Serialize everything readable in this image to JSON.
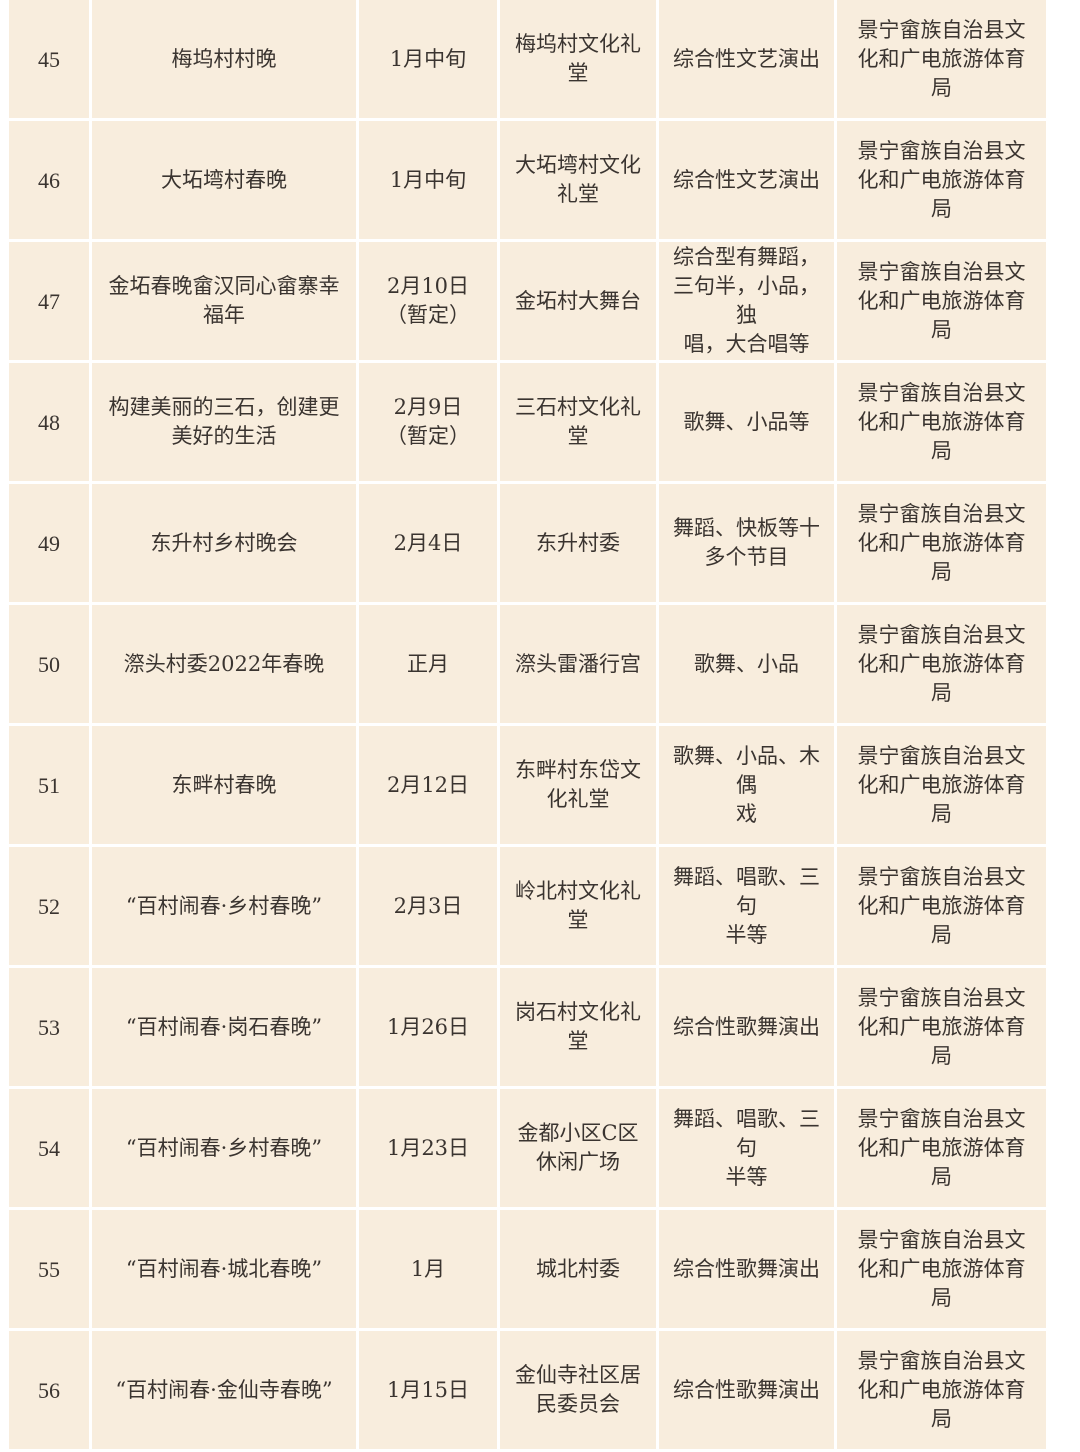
{
  "table": {
    "rows": [
      {
        "no": "45",
        "name": "梅坞村村晚",
        "date": "1月中旬",
        "venue": "梅坞村文化礼\n堂",
        "content": "综合性文艺演出",
        "org": "景宁畲族自治县文\n化和广电旅游体育\n局"
      },
      {
        "no": "46",
        "name": "大坧塆村春晚",
        "date": "1月中旬",
        "venue": "大坧塆村文化\n礼堂",
        "content": "综合性文艺演出",
        "org": "景宁畲族自治县文\n化和广电旅游体育\n局"
      },
      {
        "no": "47",
        "name": "金坧春晚畲汉同心畲寨幸\n福年",
        "date": "2月10日\n（暂定）",
        "venue": "金坧村大舞台",
        "content": "综合型有舞蹈，\n三句半，小品，独\n唱，大合唱等",
        "org": "景宁畲族自治县文\n化和广电旅游体育\n局"
      },
      {
        "no": "48",
        "name": "构建美丽的三石，创建更\n美好的生活",
        "date": "2月9日\n（暂定）",
        "venue": "三石村文化礼\n堂",
        "content": "歌舞、小品等",
        "org": "景宁畲族自治县文\n化和广电旅游体育\n局"
      },
      {
        "no": "49",
        "name": "东升村乡村晚会",
        "date": "2月4日",
        "venue": "东升村委",
        "content": "舞蹈、快板等十\n多个节目",
        "org": "景宁畲族自治县文\n化和广电旅游体育\n局"
      },
      {
        "no": "50",
        "name": "漈头村委2022年春晚",
        "date": "正月",
        "venue": "漈头雷潘行宫",
        "content": "歌舞、小品",
        "org": "景宁畲族自治县文\n化和广电旅游体育\n局"
      },
      {
        "no": "51",
        "name": "东畔村春晚",
        "date": "2月12日",
        "venue": "东畔村东岱文\n化礼堂",
        "content": "歌舞、小品、木偶\n戏",
        "org": "景宁畲族自治县文\n化和广电旅游体育\n局"
      },
      {
        "no": "52",
        "name": "“百村闹春·乡村春晚”",
        "date": "2月3日",
        "venue": "岭北村文化礼\n堂",
        "content": "舞蹈、唱歌、三句\n半等",
        "org": "景宁畲族自治县文\n化和广电旅游体育\n局"
      },
      {
        "no": "53",
        "name": "“百村闹春·岗石春晚”",
        "date": "1月26日",
        "venue": "岗石村文化礼\n堂",
        "content": "综合性歌舞演出",
        "org": "景宁畲族自治县文\n化和广电旅游体育\n局"
      },
      {
        "no": "54",
        "name": "“百村闹春·乡村春晚”",
        "date": "1月23日",
        "venue": "金都小区C区\n休闲广场",
        "content": "舞蹈、唱歌、三句\n半等",
        "org": "景宁畲族自治县文\n化和广电旅游体育\n局"
      },
      {
        "no": "55",
        "name": "“百村闹春·城北春晚”",
        "date": "1月",
        "venue": "城北村委",
        "content": "综合性歌舞演出",
        "org": "景宁畲族自治县文\n化和广电旅游体育\n局"
      },
      {
        "no": "56",
        "name": "“百村闹春·金仙寺春晚”",
        "date": "1月15日",
        "venue": "金仙寺社区居\n民委员会",
        "content": "综合性歌舞演出",
        "org": "景宁畲族自治县文\n化和广电旅游体育\n局"
      }
    ]
  }
}
